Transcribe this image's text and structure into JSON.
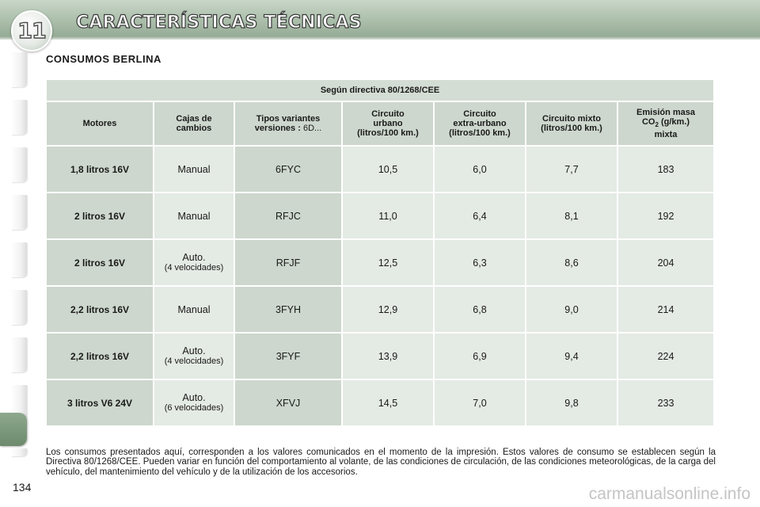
{
  "header": {
    "chapter_number": "11",
    "title": "CARACTERÍSTICAS TÉCNICAS"
  },
  "section_title": "CONSUMOS BERLINA",
  "table": {
    "directive": "Según directiva 80/1268/CEE",
    "columns": {
      "motores": "Motores",
      "cajas_line1": "Cajas de",
      "cajas_line2": "cambios",
      "tipos_line1": "Tipos variantes",
      "tipos_line2_bold": "versiones :",
      "tipos_line2_light": " 6D...",
      "urbano_line1": "Circuito",
      "urbano_line2": "urbano",
      "urbano_line3": "(litros/100 km.)",
      "extra_line1": "Circuito",
      "extra_line2": "extra-urbano",
      "extra_line3": "(litros/100 km.)",
      "mixto_line1": "Circuito mixto",
      "mixto_line2": "(litros/100 km.)",
      "emision_line1": "Emisión masa",
      "emision_co": "CO",
      "emision_sub": "2",
      "emision_unit": " (g/km.)",
      "emision_line3": "mixta"
    },
    "rows": [
      {
        "motor": "1,8 litros 16V",
        "gear": "Manual",
        "gear_detail": "",
        "variant": "6FYC",
        "urbano": "10,5",
        "extra": "6,0",
        "mixto": "7,7",
        "co2": "183"
      },
      {
        "motor": "2 litros 16V",
        "gear": "Manual",
        "gear_detail": "",
        "variant": "RFJC",
        "urbano": "11,0",
        "extra": "6,4",
        "mixto": "8,1",
        "co2": "192"
      },
      {
        "motor": "2 litros 16V",
        "gear": "Auto.",
        "gear_detail": "(4 velocidades)",
        "variant": "RFJF",
        "urbano": "12,5",
        "extra": "6,3",
        "mixto": "8,6",
        "co2": "204"
      },
      {
        "motor": "2,2 litros 16V",
        "gear": "Manual",
        "gear_detail": "",
        "variant": "3FYH",
        "urbano": "12,9",
        "extra": "6,8",
        "mixto": "9,0",
        "co2": "214"
      },
      {
        "motor": "2,2 litros 16V",
        "gear": "Auto.",
        "gear_detail": "(4 velocidades)",
        "variant": "3FYF",
        "urbano": "13,9",
        "extra": "6,9",
        "mixto": "9,4",
        "co2": "224"
      },
      {
        "motor": "3 litros V6 24V",
        "gear": "Auto.",
        "gear_detail": "(6 velocidades)",
        "variant": "XFVJ",
        "urbano": "14,5",
        "extra": "7,0",
        "mixto": "9,8",
        "co2": "233"
      }
    ]
  },
  "footnote": "Los consumos presentados aquí, corresponden a los valores comunicados en el momento de la impresión. Estos valores de consumo se establecen según la Directiva 80/1268/CEE. Pueden variar en función del comportamiento al volante, de las condiciones de circulación, de las condiciones meteorológicas, de la carga del vehículo, del mantenimiento del vehículo y de la utilización de los accesorios.",
  "page_number": "134",
  "watermark": "carmanualsonline.info",
  "colors": {
    "header_green": "#a9bda9",
    "cell_dark": "#cdd7cd",
    "cell_light": "#e4eae4",
    "active_tab": "#7a967a"
  }
}
